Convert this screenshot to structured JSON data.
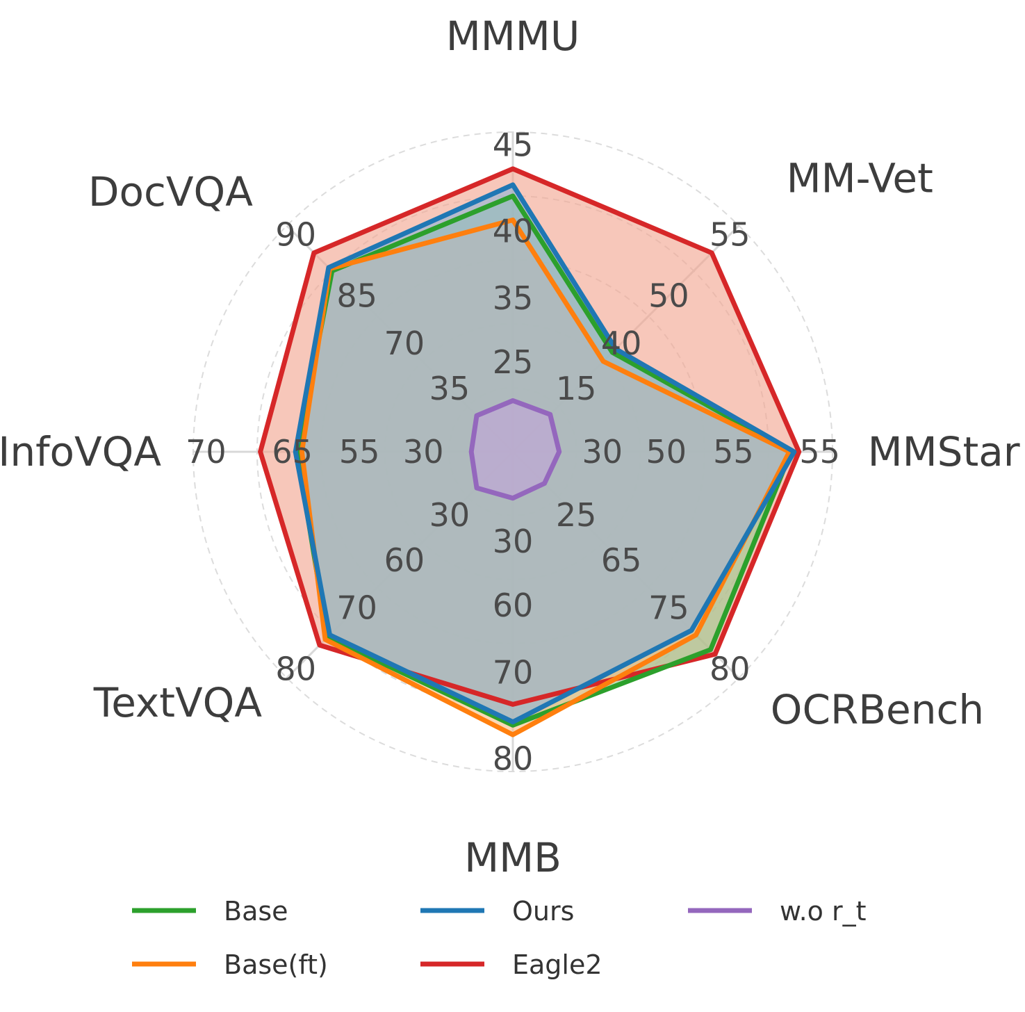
{
  "chart_data": {
    "type": "radar",
    "axes": [
      {
        "label": "MMMU",
        "ticks": [
          "25",
          "35",
          "40",
          "45"
        ]
      },
      {
        "label": "MM-Vet",
        "ticks": [
          "15",
          "40",
          "50",
          "55"
        ]
      },
      {
        "label": "MMStar",
        "ticks": [
          "30",
          "50",
          "55",
          "55"
        ]
      },
      {
        "label": "OCRBench",
        "ticks": [
          "25",
          "65",
          "75",
          "80"
        ]
      },
      {
        "label": "MMB",
        "ticks": [
          "30",
          "60",
          "70",
          "80"
        ]
      },
      {
        "label": "TextVQA",
        "ticks": [
          "30",
          "60",
          "70",
          "80"
        ]
      },
      {
        "label": "InfoVQA",
        "ticks": [
          "30",
          "55",
          "65",
          "70"
        ]
      },
      {
        "label": "DocVQA",
        "ticks": [
          "35",
          "70",
          "85",
          "90"
        ]
      }
    ],
    "series": [
      {
        "name": "Eagle2",
        "color": "#d62728",
        "fill": "#f2a58f",
        "values": [
          0.885,
          0.88,
          0.895,
          0.895,
          0.79,
          0.855,
          0.79,
          0.88
        ]
      },
      {
        "name": "Base",
        "color": "#2ca02c",
        "fill": "#9bc98f",
        "values": [
          0.8,
          0.44,
          0.87,
          0.875,
          0.855,
          0.82,
          0.675,
          0.8
        ]
      },
      {
        "name": "Base(ft)",
        "color": "#ff7f0e",
        "fill": "#f7c08a",
        "values": [
          0.725,
          0.4,
          0.865,
          0.81,
          0.885,
          0.83,
          0.66,
          0.81
        ]
      },
      {
        "name": "Ours",
        "color": "#1f77b4",
        "fill": "#8fb5d6",
        "values": [
          0.835,
          0.455,
          0.88,
          0.79,
          0.845,
          0.81,
          0.68,
          0.815
        ]
      },
      {
        "name": "w.o r_t",
        "color": "#9467bd",
        "fill": "#c2a5d8",
        "values": [
          0.16,
          0.165,
          0.145,
          0.14,
          0.145,
          0.16,
          0.13,
          0.16
        ]
      }
    ]
  },
  "legend": {
    "items": [
      {
        "name": "Base",
        "color": "#2ca02c"
      },
      {
        "name": "Ours",
        "color": "#1f77b4"
      },
      {
        "name": "w.o r_t",
        "color": "#9467bd"
      },
      {
        "name": "Base(ft)",
        "color": "#ff7f0e"
      },
      {
        "name": "Eagle2",
        "color": "#d62728"
      }
    ]
  }
}
